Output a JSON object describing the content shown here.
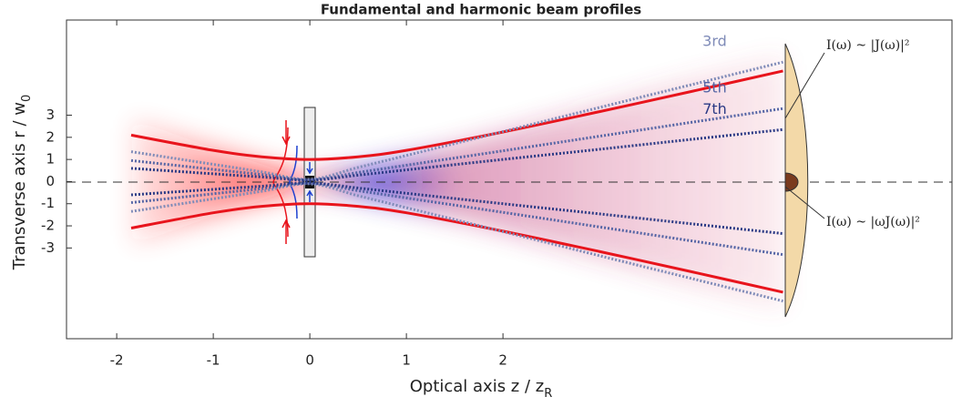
{
  "chart_data": {
    "type": "line",
    "title": "Fundamental and harmonic beam profiles",
    "x_label": "Optical axis z / z",
    "x_label_subscript": "R",
    "y_label": "Transverse axis r / w",
    "y_label_subscript": "0",
    "x": [
      -1.85,
      -1,
      -0.5,
      0,
      0.5,
      1,
      2,
      3,
      4,
      4.9
    ],
    "series": [
      {
        "color": "#e8141c",
        "values": [
          2.1,
          1.41,
          1.12,
          1,
          1.12,
          1.41,
          2.24,
          3.16,
          4.12,
          5.0
        ]
      },
      {
        "color": "#e8141c",
        "values": [
          -2.1,
          -1.41,
          -1.12,
          -1,
          -1.12,
          -1.41,
          -2.24,
          -3.16,
          -4.12,
          -5.0
        ]
      },
      {
        "name": "3rd",
        "color": "#7f8bb8",
        "values": [
          1.35,
          0.78,
          0.44,
          0.1,
          0.64,
          1.18,
          2.26,
          3.35,
          4.43,
          5.4
        ]
      },
      {
        "color": "#7f8bb8",
        "values": [
          -1.35,
          -0.78,
          -0.44,
          -0.1,
          -0.64,
          -1.18,
          -2.26,
          -3.35,
          -4.43,
          -5.4
        ]
      },
      {
        "name": "5th",
        "color": "#5565a5",
        "values": [
          0.95,
          0.55,
          0.32,
          0.08,
          0.41,
          0.74,
          1.39,
          2.05,
          2.71,
          3.3
        ]
      },
      {
        "color": "#5565a5",
        "values": [
          -0.95,
          -0.55,
          -0.32,
          -0.08,
          -0.41,
          -0.74,
          -1.39,
          -2.05,
          -2.71,
          -3.3
        ]
      },
      {
        "name": "7th",
        "color": "#2b3a85",
        "values": [
          0.6,
          0.35,
          0.21,
          0.06,
          0.29,
          0.53,
          1.0,
          1.46,
          1.93,
          2.35
        ]
      },
      {
        "color": "#2b3a85",
        "values": [
          -0.6,
          -0.35,
          -0.21,
          -0.06,
          -0.29,
          -0.53,
          -1.0,
          -1.46,
          -1.93,
          -2.35
        ]
      }
    ],
    "annotations": [
      "I(ω) ~ |J(ω)|²",
      "I(ω) ~ |ωJ(ω)|²"
    ],
    "xlim": [
      -2.52,
      6.65
    ],
    "ylim": [
      -7.1,
      7.3
    ],
    "xticks": [
      -2,
      -1,
      0,
      1,
      2
    ],
    "yticks": [
      -3,
      -2,
      -1,
      0,
      1,
      2,
      3
    ]
  }
}
